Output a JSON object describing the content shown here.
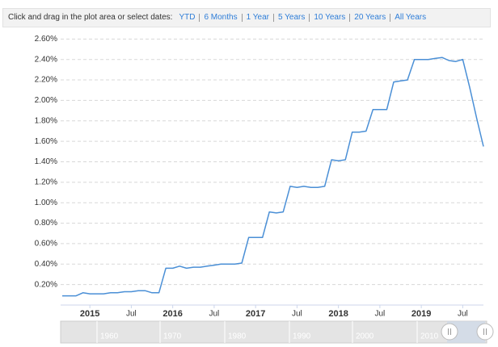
{
  "toolbar": {
    "prompt": "Click and drag in the plot area or select dates:",
    "links": [
      "YTD",
      "6 Months",
      "1 Year",
      "5 Years",
      "10 Years",
      "20 Years",
      "All Years"
    ]
  },
  "chart_data": {
    "type": "line",
    "x": [
      "2014-09",
      "2014-10",
      "2014-11",
      "2014-12",
      "2015-01",
      "2015-02",
      "2015-03",
      "2015-04",
      "2015-05",
      "2015-06",
      "2015-07",
      "2015-08",
      "2015-09",
      "2015-10",
      "2015-11",
      "2015-12",
      "2016-01",
      "2016-02",
      "2016-03",
      "2016-04",
      "2016-05",
      "2016-06",
      "2016-07",
      "2016-08",
      "2016-09",
      "2016-10",
      "2016-11",
      "2016-12",
      "2017-01",
      "2017-02",
      "2017-03",
      "2017-04",
      "2017-05",
      "2017-06",
      "2017-07",
      "2017-08",
      "2017-09",
      "2017-10",
      "2017-11",
      "2017-12",
      "2018-01",
      "2018-02",
      "2018-03",
      "2018-04",
      "2018-05",
      "2018-06",
      "2018-07",
      "2018-08",
      "2018-09",
      "2018-10",
      "2018-11",
      "2018-12",
      "2019-01",
      "2019-02",
      "2019-03",
      "2019-04",
      "2019-05",
      "2019-06",
      "2019-07",
      "2019-08",
      "2019-09",
      "2019-10"
    ],
    "series": [
      {
        "color": "#4a8fd6",
        "values": [
          0.09,
          0.09,
          0.09,
          0.12,
          0.11,
          0.11,
          0.11,
          0.12,
          0.12,
          0.13,
          0.13,
          0.14,
          0.14,
          0.12,
          0.12,
          0.36,
          0.36,
          0.38,
          0.36,
          0.37,
          0.37,
          0.38,
          0.39,
          0.4,
          0.4,
          0.4,
          0.41,
          0.66,
          0.66,
          0.66,
          0.91,
          0.9,
          0.91,
          1.16,
          1.15,
          1.16,
          1.15,
          1.15,
          1.16,
          1.42,
          1.41,
          1.42,
          1.69,
          1.69,
          1.7,
          1.91,
          1.91,
          1.91,
          2.18,
          2.19,
          2.2,
          2.4,
          2.4,
          2.4,
          2.41,
          2.42,
          2.39,
          2.38,
          2.4,
          2.13,
          1.83,
          1.55
        ]
      }
    ],
    "xlim": [
      "2014-09",
      "2019-10"
    ],
    "xticks": [
      {
        "value": "2015-01",
        "label": "2015"
      },
      {
        "value": "2015-07",
        "label": "Jul"
      },
      {
        "value": "2016-01",
        "label": "2016"
      },
      {
        "value": "2016-07",
        "label": "Jul"
      },
      {
        "value": "2017-01",
        "label": "2017"
      },
      {
        "value": "2017-07",
        "label": "Jul"
      },
      {
        "value": "2018-01",
        "label": "2018"
      },
      {
        "value": "2018-07",
        "label": "Jul"
      },
      {
        "value": "2019-01",
        "label": "2019"
      },
      {
        "value": "2019-07",
        "label": "Jul"
      }
    ],
    "ylim": [
      0,
      2.65
    ],
    "yticks": [
      {
        "value": 0.2,
        "label": "0.20%"
      },
      {
        "value": 0.4,
        "label": "0.40%"
      },
      {
        "value": 0.6,
        "label": "0.60%"
      },
      {
        "value": 0.8,
        "label": "0.80%"
      },
      {
        "value": 1.0,
        "label": "1.00%"
      },
      {
        "value": 1.2,
        "label": "1.20%"
      },
      {
        "value": 1.4,
        "label": "1.40%"
      },
      {
        "value": 1.6,
        "label": "1.60%"
      },
      {
        "value": 1.8,
        "label": "1.80%"
      },
      {
        "value": 2.0,
        "label": "2.00%"
      },
      {
        "value": 2.2,
        "label": "2.20%"
      },
      {
        "value": 2.4,
        "label": "2.40%"
      },
      {
        "value": 2.6,
        "label": "2.60%"
      }
    ],
    "grid": true
  },
  "navigator": {
    "labels": [
      "1960",
      "1970",
      "1980",
      "1990",
      "2000",
      "2010"
    ]
  }
}
